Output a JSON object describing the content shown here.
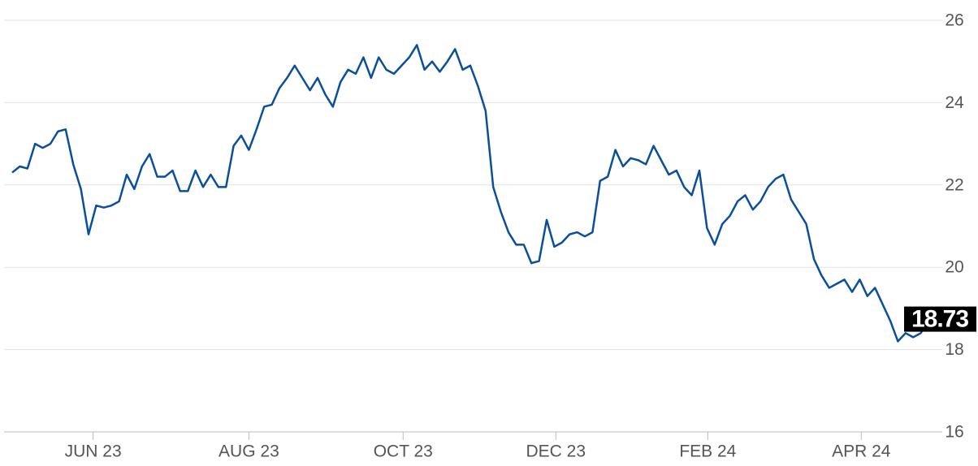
{
  "chart_data": {
    "type": "line",
    "series": [
      {
        "color": "#0b4f9c",
        "values": [
          22.3,
          22.45,
          22.4,
          23.0,
          22.9,
          23.0,
          23.3,
          23.35,
          22.5,
          21.9,
          20.8,
          21.5,
          21.45,
          21.5,
          21.6,
          22.25,
          21.9,
          22.45,
          22.75,
          22.2,
          22.2,
          22.35,
          21.85,
          21.85,
          22.35,
          21.95,
          22.25,
          21.95,
          21.95,
          22.95,
          23.2,
          22.85,
          23.35,
          23.9,
          23.95,
          24.35,
          24.6,
          24.9,
          24.6,
          24.3,
          24.6,
          24.2,
          23.9,
          24.5,
          24.8,
          24.7,
          25.1,
          24.6,
          25.1,
          24.8,
          24.7,
          24.9,
          25.1,
          25.4,
          24.8,
          25.0,
          24.75,
          25.0,
          25.3,
          24.8,
          24.9,
          24.4,
          23.8,
          21.95,
          21.35,
          20.85,
          20.55,
          20.55,
          20.1,
          20.15,
          21.15,
          20.5,
          20.6,
          20.8,
          20.85,
          20.75,
          20.85,
          22.1,
          22.2,
          22.85,
          22.45,
          22.65,
          22.6,
          22.5,
          22.95,
          22.6,
          22.25,
          22.35,
          21.95,
          21.75,
          22.35,
          20.95,
          20.55,
          21.05,
          21.25,
          21.6,
          21.75,
          21.4,
          21.6,
          21.95,
          22.15,
          22.25,
          21.65,
          21.35,
          21.05,
          20.2,
          19.8,
          19.5,
          19.6,
          19.7,
          19.4,
          19.7,
          19.3,
          19.5,
          19.1,
          18.7,
          18.2,
          18.4,
          18.3,
          18.4,
          18.73
        ]
      }
    ],
    "xlim": [
      0,
      120
    ],
    "xticks": [
      {
        "value": 10.6,
        "label": "JUN 23"
      },
      {
        "value": 31,
        "label": "AUG 23"
      },
      {
        "value": 51.2,
        "label": "OCT 23"
      },
      {
        "value": 71.2,
        "label": "DEC 23"
      },
      {
        "value": 91.1,
        "label": "FEB 24"
      },
      {
        "value": 111.2,
        "label": "APR 24"
      }
    ],
    "ylim": [
      16,
      26
    ],
    "yticks": [
      16,
      18,
      20,
      22,
      24,
      26
    ],
    "grid": true
  }
}
